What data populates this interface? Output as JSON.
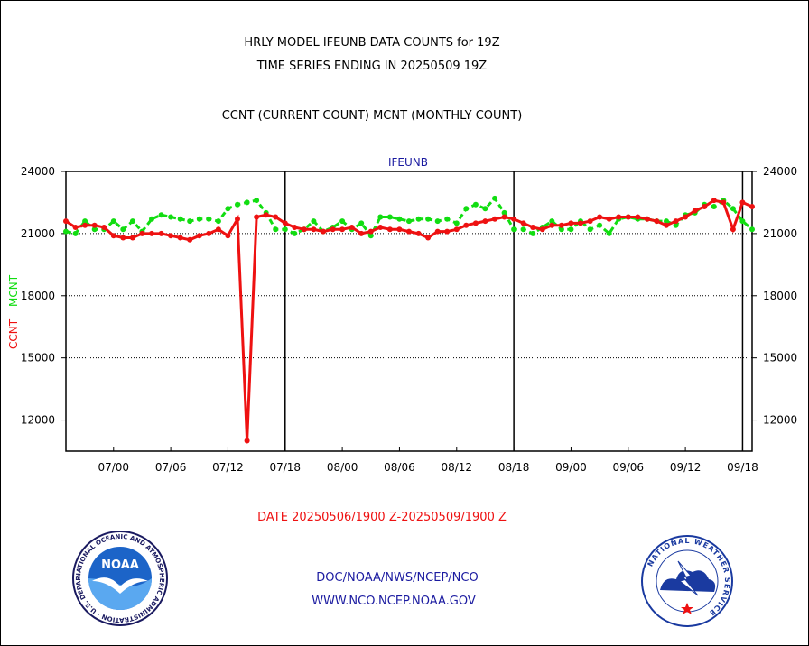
{
  "header": {
    "line1": "HRLY MODEL IFEUNB DATA COUNTS for 19Z",
    "line2": "TIME SERIES ENDING IN 20250509 19Z",
    "line3": "CCNT (CURRENT COUNT) MCNT (MONTHLY COUNT)"
  },
  "footer": {
    "date_range": "DATE 20250506/1900 Z-20250509/1900 Z",
    "org_path": "DOC/NOAA/NWS/NCEP/NCO",
    "website": "WWW.NCO.NCEP.NOAA.GOV"
  },
  "logos": {
    "noaa_text": "NOAA",
    "noaa_ring": "NATIONAL OCEANIC AND ATMOSPHERIC ADMINISTRATION · U.S. DEPARTMENT OF COMMERCE",
    "nws_ring": "NATIONAL WEATHER SERVICE"
  },
  "chart_data": {
    "type": "line",
    "title": "IFEUNB",
    "ylabel_ccnt": "CCNT",
    "ylabel_mcnt": "MCNT",
    "ylim": [
      10500,
      24000
    ],
    "yticks": [
      12000,
      15000,
      18000,
      21000,
      24000
    ],
    "xticks": [
      {
        "x": 6,
        "label": "07/00"
      },
      {
        "x": 12,
        "label": "07/06"
      },
      {
        "x": 18,
        "label": "07/12"
      },
      {
        "x": 24,
        "label": "07/18"
      },
      {
        "x": 30,
        "label": "08/00"
      },
      {
        "x": 36,
        "label": "08/06"
      },
      {
        "x": 42,
        "label": "08/12"
      },
      {
        "x": 48,
        "label": "08/18"
      },
      {
        "x": 54,
        "label": "09/00"
      },
      {
        "x": 60,
        "label": "09/06"
      },
      {
        "x": 66,
        "label": "09/12"
      },
      {
        "x": 72,
        "label": "09/18"
      }
    ],
    "xlim": [
      1,
      73
    ],
    "day_boundaries": [
      24,
      48,
      72
    ],
    "gridlines_y": [
      12000,
      15000,
      18000,
      21000
    ],
    "colors": {
      "ccnt": "#ee1111",
      "mcnt": "#11dd11",
      "grid": "#000000"
    },
    "series": [
      {
        "name": "CCNT",
        "x": [
          1,
          2,
          3,
          4,
          5,
          6,
          7,
          8,
          9,
          10,
          11,
          12,
          13,
          14,
          15,
          16,
          17,
          18,
          19,
          20,
          21,
          22,
          23,
          24,
          25,
          26,
          27,
          28,
          29,
          30,
          31,
          32,
          33,
          34,
          35,
          36,
          37,
          38,
          39,
          40,
          41,
          42,
          43,
          44,
          45,
          46,
          47,
          48,
          49,
          50,
          51,
          52,
          53,
          54,
          55,
          56,
          57,
          58,
          59,
          60,
          61,
          62,
          63,
          64,
          65,
          66,
          67,
          68,
          69,
          70,
          71,
          72,
          73
        ],
        "values": [
          21600,
          21300,
          21400,
          21400,
          21300,
          20900,
          20800,
          20800,
          21000,
          21000,
          21000,
          20900,
          20800,
          20700,
          20900,
          21000,
          21200,
          20900,
          21700,
          11000,
          21800,
          21900,
          21800,
          21500,
          21300,
          21200,
          21200,
          21100,
          21200,
          21200,
          21300,
          21000,
          21100,
          21300,
          21200,
          21200,
          21100,
          21000,
          20800,
          21100,
          21100,
          21200,
          21400,
          21500,
          21600,
          21700,
          21800,
          21700,
          21500,
          21300,
          21200,
          21400,
          21400,
          21500,
          21500,
          21600,
          21800,
          21700,
          21800,
          21800,
          21800,
          21700,
          21600,
          21400,
          21600,
          21800,
          22100,
          22300,
          22600,
          22500,
          21200,
          22500,
          22300
        ]
      },
      {
        "name": "MCNT",
        "x": [
          1,
          2,
          3,
          4,
          5,
          6,
          7,
          8,
          9,
          10,
          11,
          12,
          13,
          14,
          15,
          16,
          17,
          18,
          19,
          20,
          21,
          22,
          23,
          24,
          25,
          26,
          27,
          28,
          29,
          30,
          31,
          32,
          33,
          34,
          35,
          36,
          37,
          38,
          39,
          40,
          41,
          42,
          43,
          44,
          45,
          46,
          47,
          48,
          49,
          50,
          51,
          52,
          53,
          54,
          55,
          56,
          57,
          58,
          59,
          60,
          61,
          62,
          63,
          64,
          65,
          66,
          67,
          68,
          69,
          70,
          71,
          72,
          73
        ],
        "values": [
          21100,
          21000,
          21600,
          21200,
          21200,
          21600,
          21200,
          21600,
          21100,
          21700,
          21900,
          21800,
          21700,
          21600,
          21700,
          21700,
          21600,
          22200,
          22400,
          22500,
          22600,
          22000,
          21200,
          21200,
          21000,
          21200,
          21600,
          21100,
          21300,
          21600,
          21200,
          21500,
          20900,
          21800,
          21800,
          21700,
          21600,
          21700,
          21700,
          21600,
          21700,
          21500,
          22200,
          22400,
          22200,
          22700,
          22000,
          21200,
          21200,
          21000,
          21300,
          21600,
          21200,
          21200,
          21600,
          21200,
          21400,
          21000,
          21700,
          21800,
          21700,
          21700,
          21600,
          21600,
          21400,
          21900,
          22000,
          22400,
          22300,
          22600,
          22200,
          21600,
          21200
        ]
      }
    ]
  }
}
